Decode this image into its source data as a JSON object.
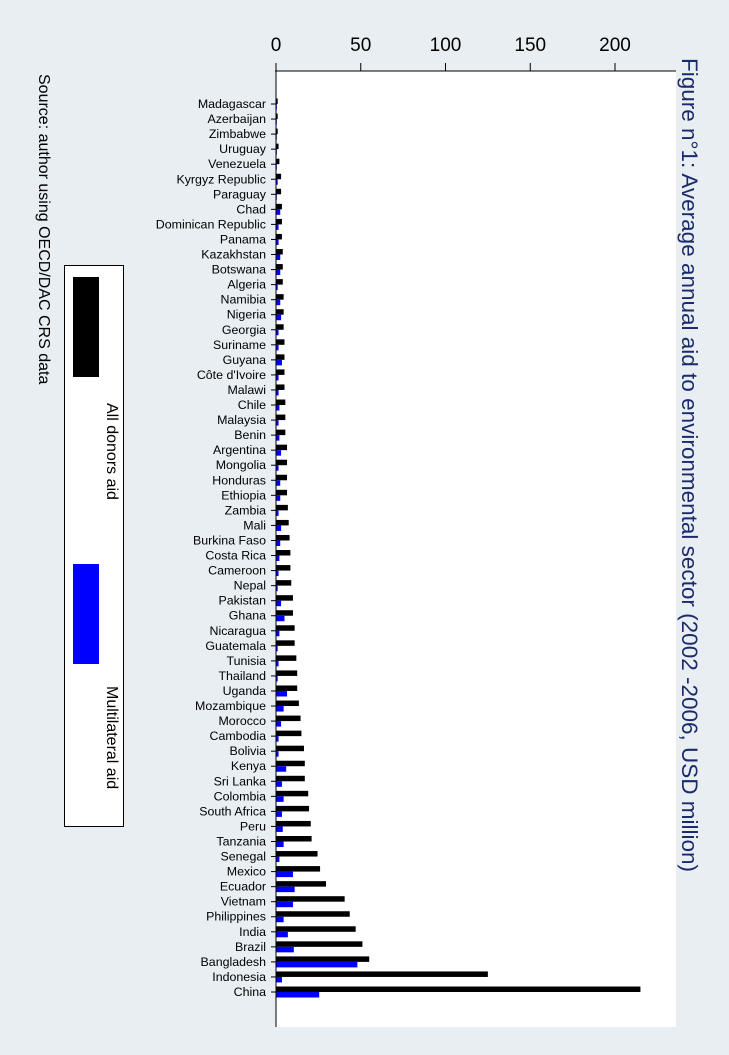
{
  "chart_data": {
    "type": "bar",
    "orientation": "horizontal",
    "title": "Figure n°1: Average annual aid to environmental sector (2002 -2006, USD million)",
    "source": "Source: author using OECD/DAC CRS data",
    "xlabel": "",
    "ylabel": "",
    "xlim": [
      0,
      230
    ],
    "xticks": [
      0,
      50,
      100,
      150,
      200
    ],
    "grid": false,
    "legend_position": "left",
    "categories": [
      "Madagascar",
      "Azerbaijan",
      "Zimbabwe",
      "Uruguay",
      "Venezuela",
      "Kyrgyz Republic",
      "Paraguay",
      "Chad",
      "Dominican Republic",
      "Panama",
      "Kazakhstan",
      "Botswana",
      "Algeria",
      "Namibia",
      "Nigeria",
      "Georgia",
      "Suriname",
      "Guyana",
      "Côte d'Ivoire",
      "Malawi",
      "Chile",
      "Malaysia",
      "Benin",
      "Argentina",
      "Mongolia",
      "Honduras",
      "Ethiopia",
      "Zambia",
      "Mali",
      "Burkina Faso",
      "Costa Rica",
      "Cameroon",
      "Nepal",
      "Pakistan",
      "Ghana",
      "Nicaragua",
      "Guatemala",
      "Tunisia",
      "Thailand",
      "Uganda",
      "Mozambique",
      "Morocco",
      "Cambodia",
      "Bolivia",
      "Kenya",
      "Sri Lanka",
      "Colombia",
      "South Africa",
      "Peru",
      "Tanzania",
      "Senegal",
      "Mexico",
      "Ecuador",
      "Vietnam",
      "Philippines",
      "India",
      "Brazil",
      "Bangladesh",
      "Indonesia",
      "China"
    ],
    "series": [
      {
        "name": "All donors aid",
        "color": "#000000",
        "values": [
          1,
          1,
          1,
          1.5,
          2,
          3,
          3,
          3.5,
          3.5,
          3.5,
          4,
          4,
          4,
          4.5,
          4.5,
          4.5,
          5,
          5,
          5,
          5,
          5.5,
          5.5,
          5.5,
          6.5,
          6.5,
          6.5,
          6.5,
          7,
          7.5,
          8,
          8.5,
          8.5,
          9,
          10,
          10,
          11,
          11,
          12,
          12.5,
          12.5,
          13.5,
          14.5,
          15,
          16.5,
          17,
          17,
          19,
          19.5,
          20.5,
          21,
          24.5,
          26,
          29.5,
          40.5,
          43.5,
          47,
          51,
          55,
          125,
          215
        ]
      },
      {
        "name": "Multilateral aid",
        "color": "#0000ff",
        "values": [
          0.5,
          0.3,
          0.3,
          0.5,
          0.5,
          1,
          0.3,
          2.5,
          1.5,
          1.5,
          2.5,
          2.5,
          1,
          2.5,
          3,
          1.5,
          1.5,
          3.5,
          1.5,
          1.5,
          2,
          1.5,
          2,
          3,
          1.5,
          2.5,
          2.5,
          1.5,
          3,
          2.5,
          2,
          1.5,
          1,
          3,
          5,
          2,
          1,
          1.5,
          1,
          6.5,
          4.5,
          3,
          1.5,
          1.5,
          6,
          3.5,
          4.5,
          3.5,
          4,
          4.5,
          2,
          10,
          11,
          10,
          4.5,
          7,
          10.5,
          48,
          3.5,
          25.5
        ]
      }
    ]
  }
}
